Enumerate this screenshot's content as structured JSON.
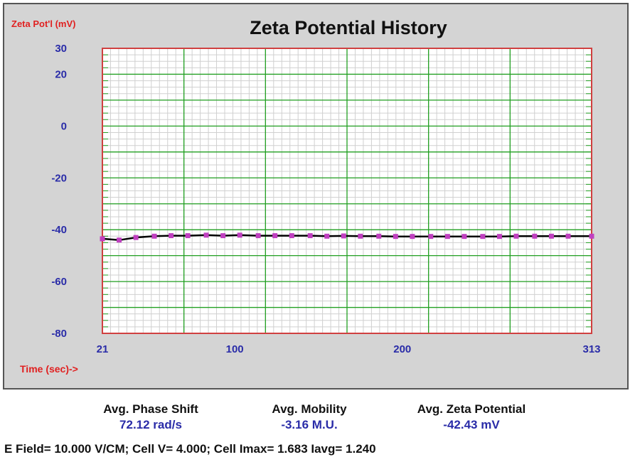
{
  "chart_data": {
    "type": "line",
    "title": "Zeta Potential History",
    "ylabel": "Zeta Pot'l (mV)",
    "xlabel": "Time (sec)->",
    "xlim": [
      21,
      313
    ],
    "ylim": [
      -80,
      30
    ],
    "x_ticks": [
      "21",
      "100",
      "200",
      "313"
    ],
    "x_tick_values": [
      21,
      100,
      200,
      313
    ],
    "y_ticks": [
      "30",
      "20",
      "0",
      "-20",
      "-40",
      "-60",
      "-80"
    ],
    "y_tick_values": [
      30,
      20,
      0,
      -20,
      -40,
      -60,
      -80
    ],
    "grid": true,
    "series": [
      {
        "marker_color": "#c040c0",
        "line_color": "#000000",
        "x": [
          21,
          31,
          41,
          52,
          62,
          72,
          83,
          93,
          103,
          114,
          124,
          134,
          145,
          155,
          165,
          175,
          186,
          196,
          206,
          217,
          227,
          237,
          248,
          258,
          268,
          279,
          289,
          299,
          313
        ],
        "y": [
          -43.5,
          -44.0,
          -43.0,
          -42.5,
          -42.3,
          -42.3,
          -42.1,
          -42.3,
          -42.1,
          -42.3,
          -42.3,
          -42.3,
          -42.3,
          -42.5,
          -42.4,
          -42.5,
          -42.5,
          -42.6,
          -42.6,
          -42.6,
          -42.6,
          -42.6,
          -42.6,
          -42.6,
          -42.5,
          -42.5,
          -42.5,
          -42.5,
          -42.5
        ]
      }
    ]
  },
  "stats": {
    "phase": {
      "label": "Avg. Phase Shift",
      "value": "72.12 rad/s"
    },
    "mobility": {
      "label": "Avg. Mobility",
      "value": "-3.16 M.U."
    },
    "zeta": {
      "label": "Avg. Zeta Potential",
      "value": "-42.43 mV"
    }
  },
  "footer": "E Field= 10.000 V/CM; Cell V= 4.000; Cell Imax= 1.683 Iavg= 1.240",
  "colors": {
    "panel_bg": "#d4d4d4",
    "plot_bg": "#ffffff",
    "grid_major": "#22a022",
    "grid_minor": "#d0d0d0",
    "plot_border": "#d04040",
    "axis_label": "#e02020",
    "tick_label": "#2a2ca8"
  }
}
